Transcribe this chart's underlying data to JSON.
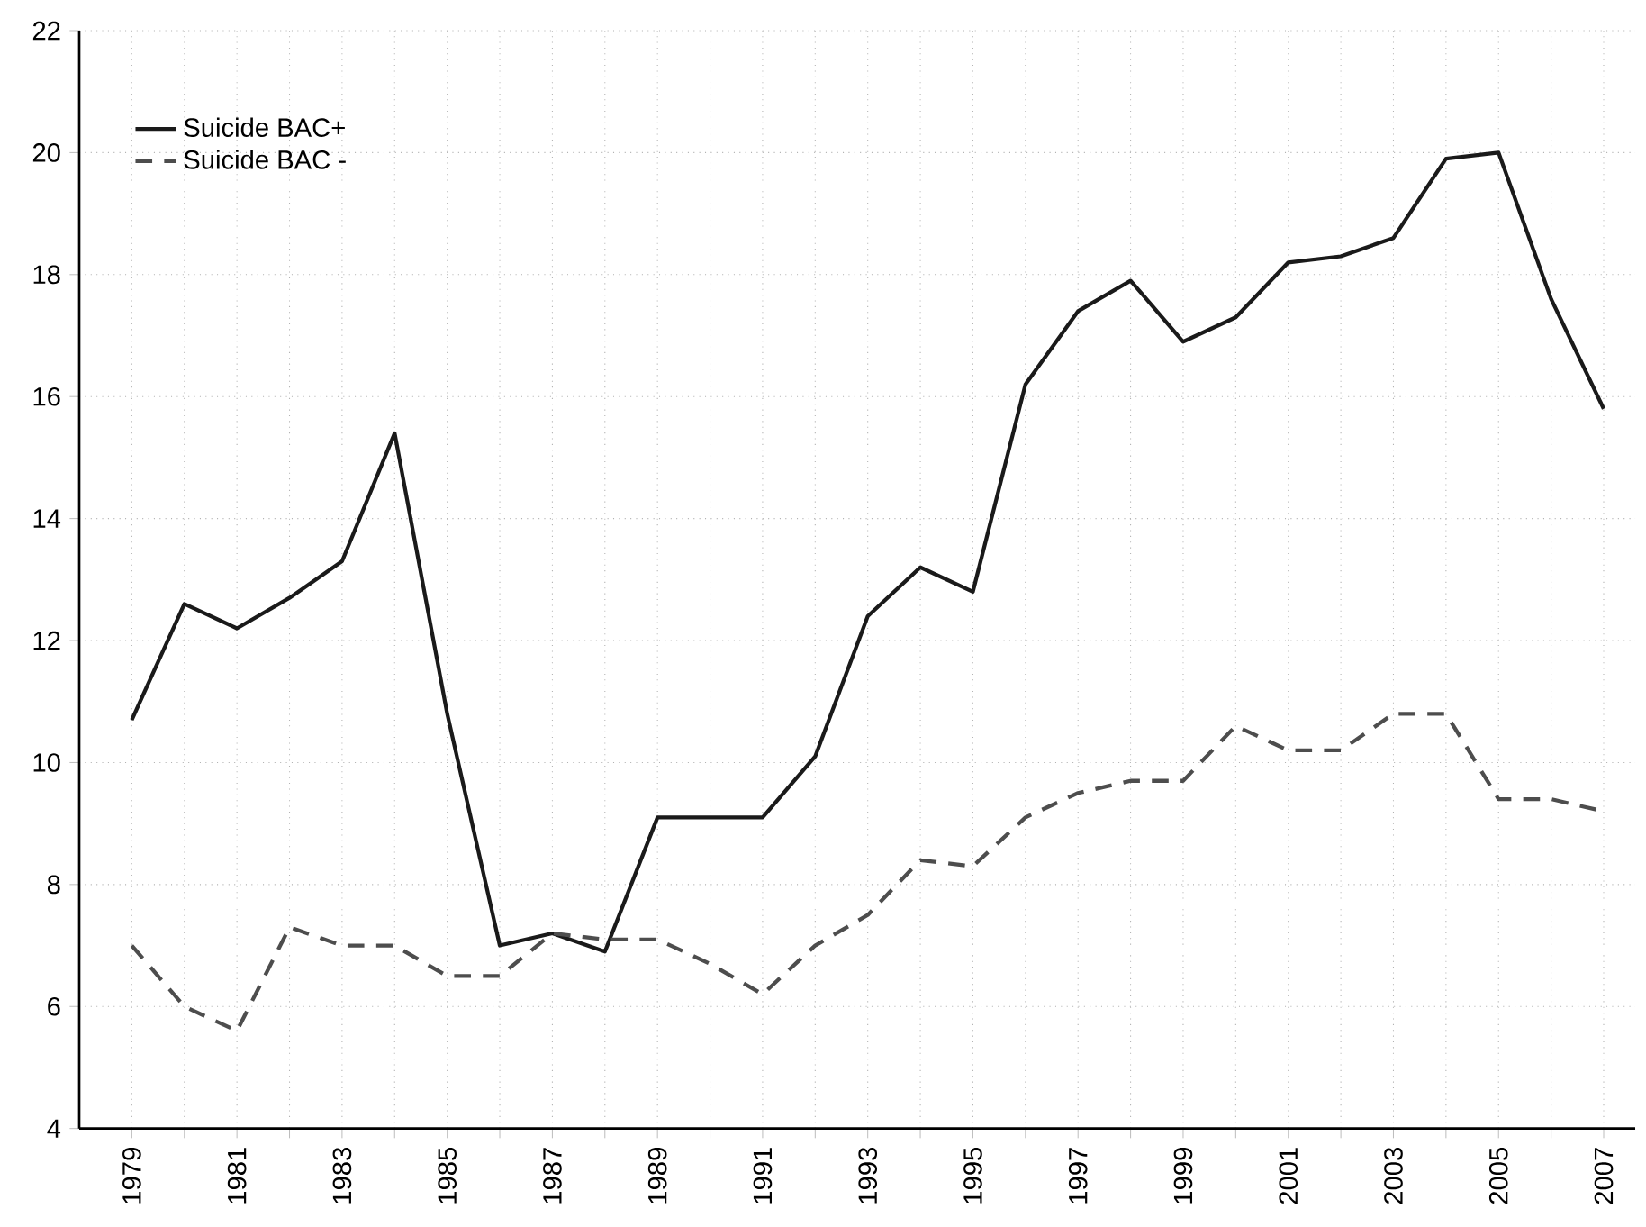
{
  "chart_data": {
    "type": "line",
    "categories": [
      "1979",
      null,
      "1981",
      null,
      "1983",
      null,
      "1985",
      null,
      "1987",
      null,
      "1989",
      null,
      "1991",
      null,
      "1993",
      null,
      "1995",
      null,
      "1997",
      null,
      "1999",
      null,
      "2001",
      null,
      "2003",
      null,
      "2005",
      null,
      "2007"
    ],
    "series": [
      {
        "name": "Suicide BAC+",
        "color": "#1a1a1a",
        "line_style": "solid",
        "values": [
          10.7,
          12.6,
          12.2,
          12.7,
          13.3,
          15.4,
          10.8,
          7.0,
          7.2,
          6.9,
          9.1,
          9.1,
          9.1,
          10.1,
          12.4,
          13.2,
          12.8,
          16.2,
          17.4,
          17.9,
          16.9,
          17.3,
          18.2,
          18.3,
          18.6,
          19.9,
          20.0,
          17.6,
          15.8
        ]
      },
      {
        "name": "Suicide BAC -",
        "color": "#4d4d4d",
        "line_style": "dashed",
        "values": [
          7.0,
          6.0,
          5.6,
          7.3,
          7.0,
          7.0,
          6.5,
          6.5,
          7.2,
          7.1,
          7.1,
          6.7,
          6.2,
          7.0,
          7.5,
          8.4,
          8.3,
          9.1,
          9.5,
          9.7,
          9.7,
          10.6,
          10.2,
          10.2,
          10.8,
          10.8,
          9.4,
          9.4,
          9.2
        ]
      }
    ],
    "ylim": [
      4,
      22
    ],
    "yticks": [
      4,
      6,
      8,
      10,
      12,
      14,
      16,
      18,
      20,
      22
    ],
    "grid": true,
    "legend": "top left",
    "marker": "none"
  }
}
